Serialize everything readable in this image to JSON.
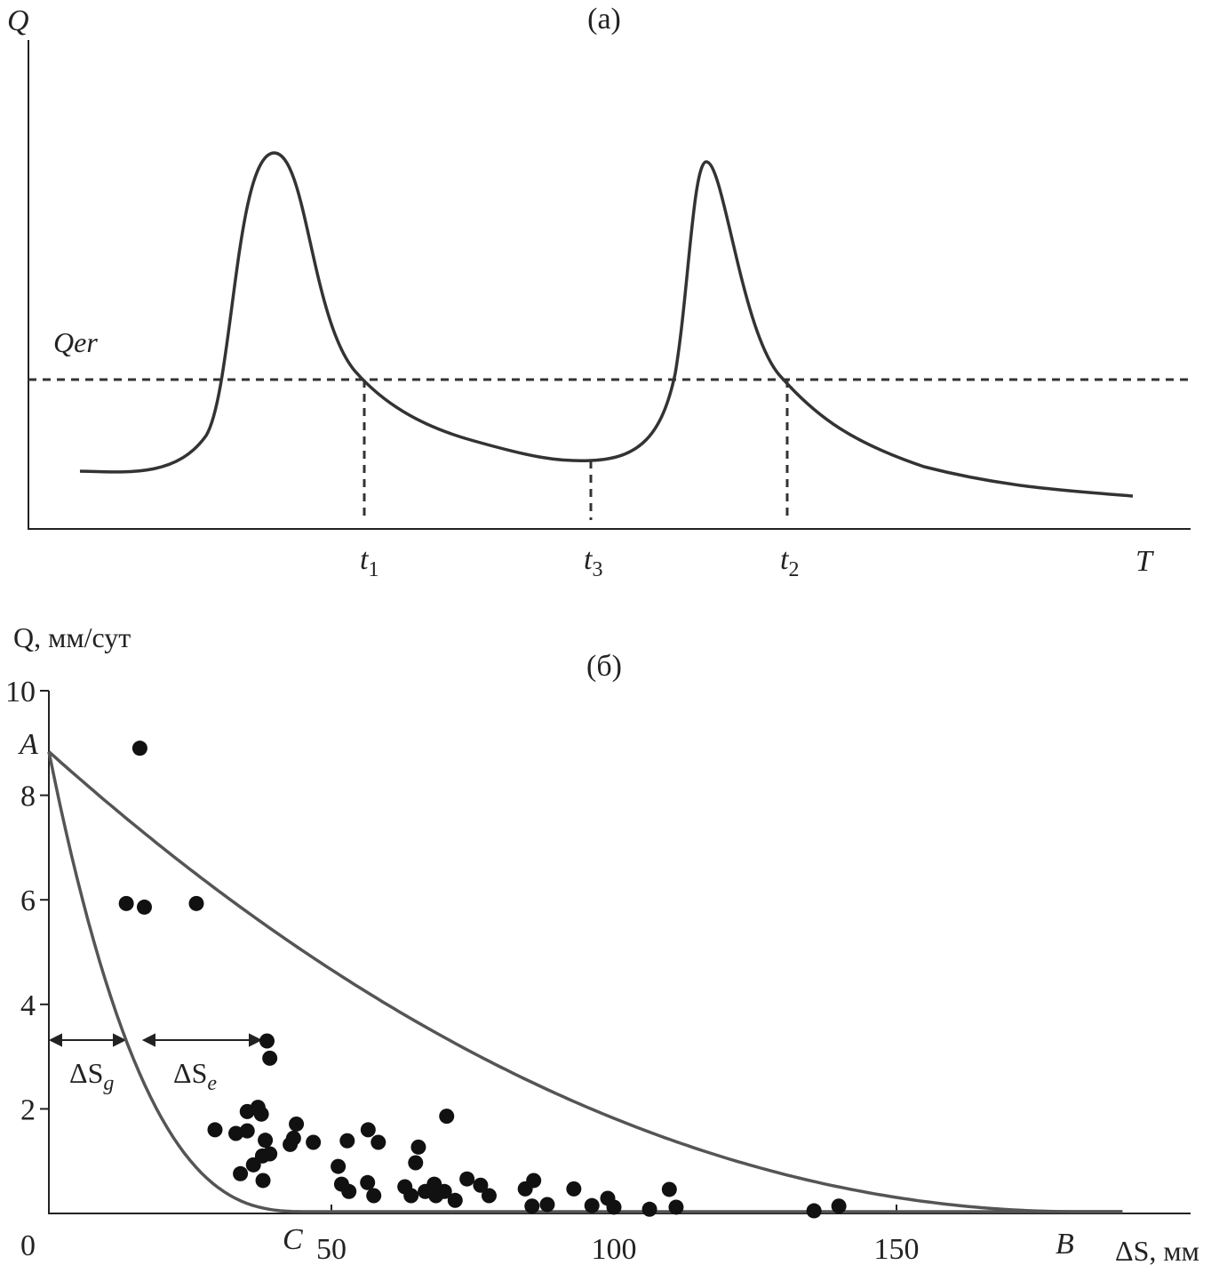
{
  "panel_a": {
    "label": "(a)",
    "y_axis_label": "Q",
    "x_axis_label": "T",
    "threshold_label": "Qer",
    "time_marks": [
      {
        "name": "t",
        "sub": "1"
      },
      {
        "name": "t",
        "sub": "3"
      },
      {
        "name": "t",
        "sub": "2"
      }
    ]
  },
  "chart_data": [
    {
      "type": "line",
      "title": "(a)",
      "xlabel": "T",
      "ylabel": "Q",
      "annotations": [
        "Qer",
        "t1",
        "t3",
        "t2"
      ],
      "note_visible": "schematic hydrograph, two peaks, dashed threshold line Qer"
    },
    {
      "type": "scatter",
      "title": "(б)",
      "xlabel": "ΔS, мм",
      "ylabel": "Q, мм/сут",
      "xlim": [
        0,
        200
      ],
      "ylim": [
        0,
        10
      ],
      "x_ticks": [
        "50",
        "100",
        "150"
      ],
      "y_ticks": [
        "0",
        "2",
        "4",
        "6",
        "8",
        "10"
      ],
      "point_labels": {
        "A": "A",
        "B": "B",
        "C": "C"
      },
      "interval_labels": {
        "g": "ΔS",
        "g_sub": "g",
        "e": "ΔS",
        "e_sub": "e"
      },
      "points": [
        [
          16.1,
          8.9
        ],
        [
          13.7,
          5.93
        ],
        [
          16.9,
          5.86
        ],
        [
          26.1,
          5.93
        ],
        [
          38.6,
          3.3
        ],
        [
          39.1,
          2.97
        ],
        [
          35.1,
          1.95
        ],
        [
          37.0,
          2.03
        ],
        [
          37.6,
          1.9
        ],
        [
          29.4,
          1.6
        ],
        [
          33.1,
          1.53
        ],
        [
          35.1,
          1.58
        ],
        [
          38.3,
          1.4
        ],
        [
          43.8,
          1.71
        ],
        [
          42.7,
          1.32
        ],
        [
          43.3,
          1.44
        ],
        [
          46.8,
          1.36
        ],
        [
          33.9,
          0.76
        ],
        [
          36.2,
          0.93
        ],
        [
          37.8,
          1.1
        ],
        [
          39.1,
          1.14
        ],
        [
          37.9,
          0.63
        ],
        [
          52.8,
          1.39
        ],
        [
          56.5,
          1.6
        ],
        [
          58.3,
          1.36
        ],
        [
          51.2,
          0.9
        ],
        [
          51.8,
          0.56
        ],
        [
          53.1,
          0.42
        ],
        [
          56.4,
          0.59
        ],
        [
          57.5,
          0.34
        ],
        [
          65.4,
          1.27
        ],
        [
          64.9,
          0.97
        ],
        [
          63.0,
          0.51
        ],
        [
          64.1,
          0.34
        ],
        [
          68.2,
          0.56
        ],
        [
          68.5,
          0.34
        ],
        [
          70.4,
          1.86
        ],
        [
          74.0,
          0.66
        ],
        [
          76.4,
          0.54
        ],
        [
          77.9,
          0.34
        ],
        [
          84.3,
          0.47
        ],
        [
          85.8,
          0.63
        ],
        [
          85.5,
          0.14
        ],
        [
          88.2,
          0.17
        ],
        [
          92.9,
          0.47
        ],
        [
          96.1,
          0.15
        ],
        [
          98.9,
          0.29
        ],
        [
          100,
          0.12
        ],
        [
          106.3,
          0.08
        ],
        [
          109.8,
          0.46
        ],
        [
          111,
          0.12
        ],
        [
          135.4,
          0.05
        ],
        [
          139.8,
          0.14
        ],
        [
          66.6,
          0.42
        ],
        [
          70,
          0.42
        ],
        [
          71.9,
          0.25
        ]
      ],
      "curves": [
        {
          "from": "A",
          "to": "B",
          "y0": 8.8,
          "x_end": 182,
          "exponent": 2
        },
        {
          "from": "A",
          "to": "C",
          "y0": 8.8,
          "x_end": 46,
          "exponent": 2.8
        }
      ],
      "line_color": "#555555",
      "point_color": "#111111"
    }
  ]
}
